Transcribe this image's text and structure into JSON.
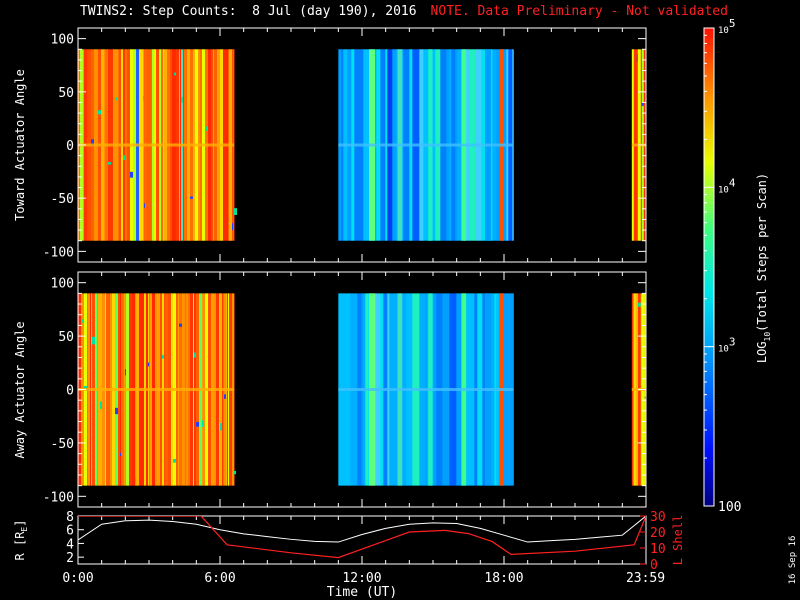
{
  "header": {
    "title": "TWINS2: Step Counts:  8 Jul (day 190), 2016",
    "note": "NOTE. Data Preliminary - Not validated"
  },
  "stamp": "16 Sep 16",
  "colors": {
    "background": "#000000",
    "axes": "#ffffff",
    "note": "#ff2020",
    "R_line": "#ffffff",
    "L_line": "#ff2020"
  },
  "chart_data": [
    {
      "type": "heatmap",
      "panel": "top",
      "ylabel": "Toward Actuator Angle",
      "yticks": [
        "100",
        "50",
        "0",
        "-50",
        "-100"
      ],
      "ylim": [
        -110,
        110
      ],
      "data_extent_y": [
        -90,
        90
      ],
      "xlim_hours": [
        0,
        24
      ],
      "data_intervals_hours": [
        [
          0,
          6.6
        ],
        [
          11,
          18.4
        ],
        [
          23.4,
          24
        ]
      ],
      "interval_levels": [
        "high (~1e4-1e5)",
        "low (~1e3-1e4)",
        "high (~1e4-1e5)"
      ]
    },
    {
      "type": "heatmap",
      "panel": "bottom",
      "ylabel": "Away Actuator Angle",
      "yticks": [
        "100",
        "50",
        "0",
        "-50",
        "-100"
      ],
      "ylim": [
        -110,
        110
      ],
      "data_extent_y": [
        -90,
        90
      ],
      "xlim_hours": [
        0,
        24
      ],
      "data_intervals_hours": [
        [
          0,
          6.6
        ],
        [
          11,
          18.4
        ],
        [
          23.4,
          24
        ]
      ],
      "interval_levels": [
        "high (~1e4-1e5)",
        "low (~1e3-1e4)",
        "high (~1e4-1e5)"
      ]
    },
    {
      "type": "line",
      "panel": "ephemeris",
      "xlabel": "Time (UT)",
      "xticks": [
        "0:00",
        "6:00",
        "12:00",
        "18:00",
        "23:59"
      ],
      "left_axis": {
        "label": "R [RE]",
        "label_main": "R [R",
        "label_sub": "E",
        "label_end": "]",
        "ylim": [
          1,
          8
        ],
        "yticks": [
          "8",
          "6",
          "4",
          "2"
        ]
      },
      "right_axis": {
        "label": "L Shell",
        "ylim": [
          0,
          30
        ],
        "yticks": [
          "30",
          "20",
          "10",
          "0"
        ]
      },
      "series": [
        {
          "name": "R",
          "axis": "left",
          "x": [
            0,
            1,
            2,
            3,
            4,
            5,
            6,
            7,
            8,
            9,
            10,
            11,
            12,
            13,
            14,
            15,
            16,
            17,
            18,
            19,
            20,
            21,
            22,
            23,
            24
          ],
          "y": [
            4.5,
            6.8,
            7.3,
            7.4,
            7.2,
            6.8,
            6.0,
            5.4,
            5.0,
            4.6,
            4.3,
            4.2,
            5.3,
            6.2,
            6.8,
            7.0,
            6.9,
            6.2,
            5.2,
            4.2,
            4.4,
            4.6,
            4.9,
            5.2,
            8.0
          ]
        },
        {
          "name": "L Shell",
          "axis": "right",
          "x": [
            0,
            5.2,
            6.3,
            9,
            11,
            12.5,
            14,
            15.5,
            16.5,
            17.5,
            18.3,
            21,
            23.5,
            24
          ],
          "y": [
            30,
            30,
            12,
            7,
            4,
            12,
            20,
            21,
            19,
            14,
            6,
            8,
            12,
            30
          ]
        }
      ]
    },
    {
      "type": "colorbar",
      "label": "LOG10(Total Steps per Scan)",
      "label_main": "LOG",
      "label_sub": "10",
      "label_end": "(Total Steps per Scan)",
      "ticks": [
        "10",
        "5",
        "10",
        "4",
        "10",
        "3",
        "100"
      ],
      "tick_values": [
        100000,
        10000,
        1000,
        100
      ],
      "tick_labels": [
        {
          "base": "10",
          "exp": "5"
        },
        {
          "base": "10",
          "exp": "4"
        },
        {
          "base": "10",
          "exp": "3"
        },
        {
          "base": "100",
          "exp": ""
        }
      ],
      "range": [
        100,
        100000
      ]
    }
  ]
}
